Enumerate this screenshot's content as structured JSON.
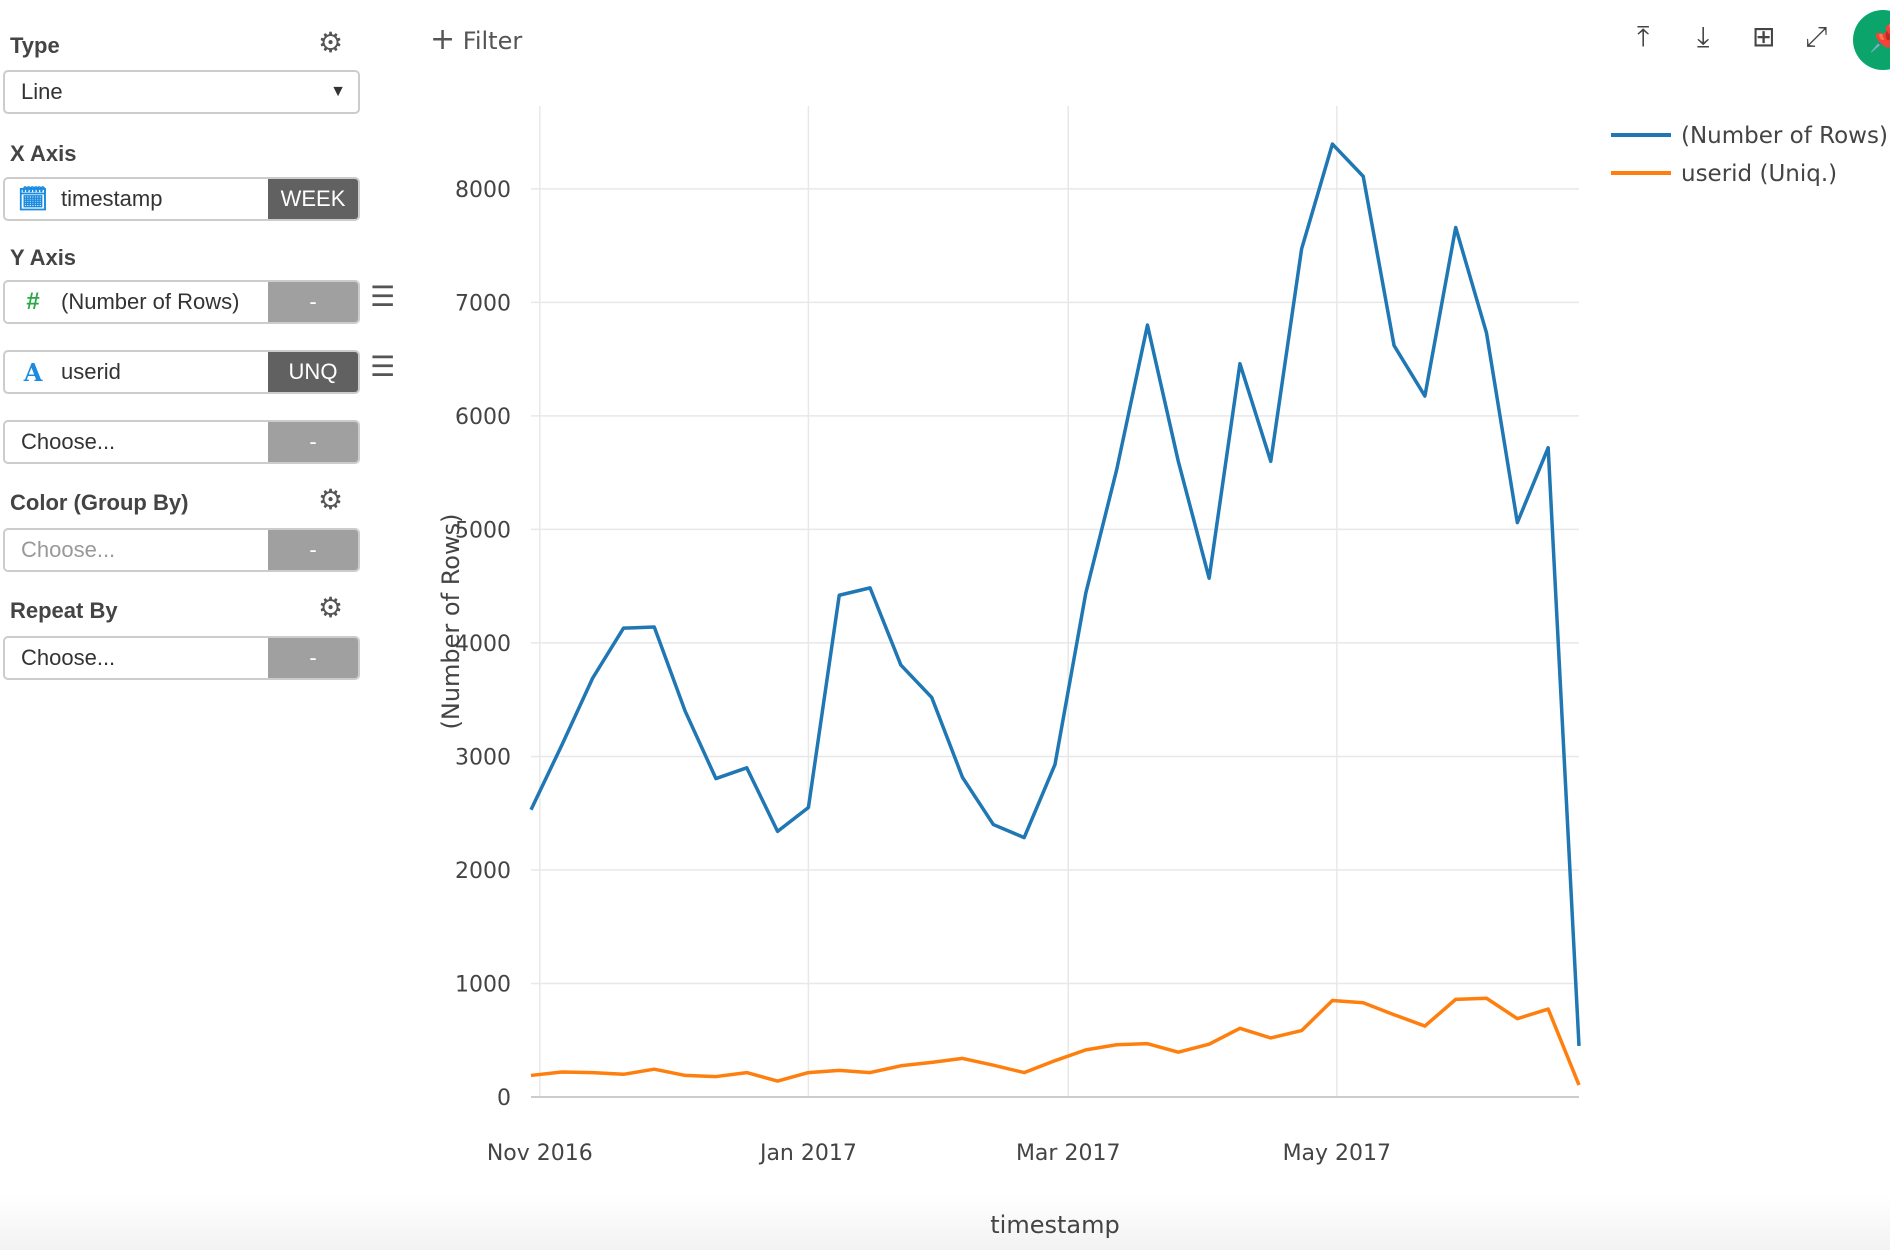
{
  "sidebar": {
    "type": {
      "label": "Type",
      "value": "Line"
    },
    "x_axis": {
      "label": "X Axis",
      "field": "timestamp",
      "agg": "WEEK",
      "icon": "calendar-icon"
    },
    "y_axis": {
      "label": "Y Axis",
      "items": [
        {
          "field": "(Number of Rows)",
          "agg": "-",
          "icon": "hash-icon"
        },
        {
          "field": "userid",
          "agg": "UNQ",
          "icon": "text-a-icon"
        },
        {
          "field": "Choose...",
          "agg": "-"
        }
      ]
    },
    "color": {
      "label": "Color (Group By)",
      "placeholder": "Choose...",
      "agg": "-"
    },
    "repeat": {
      "label": "Repeat By",
      "value": "Choose...",
      "agg": "-"
    }
  },
  "toolbar": {
    "filter_label": "Filter",
    "icons": [
      "upload-icon",
      "download-icon",
      "table-icon",
      "expand-icon",
      "pin-icon"
    ],
    "accent": "#0ba56c"
  },
  "chart_data": {
    "type": "line",
    "xlabel": "timestamp",
    "ylabel": "(Number of Rows)",
    "x": [
      "2016-10-30",
      "2016-11-06",
      "2016-11-13",
      "2016-11-20",
      "2016-11-27",
      "2016-12-04",
      "2016-12-11",
      "2016-12-18",
      "2016-12-25",
      "2017-01-01",
      "2017-01-08",
      "2017-01-15",
      "2017-01-22",
      "2017-01-29",
      "2017-02-05",
      "2017-02-12",
      "2017-02-19",
      "2017-02-26",
      "2017-03-05",
      "2017-03-12",
      "2017-03-19",
      "2017-03-26",
      "2017-04-02",
      "2017-04-09",
      "2017-04-16",
      "2017-04-23",
      "2017-04-30",
      "2017-05-07",
      "2017-05-14",
      "2017-05-21",
      "2017-05-28",
      "2017-06-04",
      "2017-06-11",
      "2017-06-18",
      "2017-06-25"
    ],
    "xticks": [
      "Nov 2016",
      "Jan 2017",
      "Mar 2017",
      "May 2017"
    ],
    "xtick_dates": [
      "2016-11-01",
      "2017-01-01",
      "2017-03-01",
      "2017-05-01"
    ],
    "yticks": [
      0,
      1000,
      2000,
      3000,
      4000,
      5000,
      6000,
      7000,
      8000
    ],
    "ylim": [
      0,
      8730
    ],
    "grid": true,
    "legend": "top-right",
    "series": [
      {
        "name": "(Number of Rows)",
        "color": "#1f77b4",
        "values": [
          2530,
          3100,
          3690,
          4130,
          4140,
          3400,
          2805,
          2900,
          2340,
          2550,
          4420,
          4485,
          3805,
          3520,
          2815,
          2400,
          2285,
          2930,
          4440,
          5525,
          6800,
          5600,
          4570,
          6460,
          5600,
          7470,
          8395,
          8110,
          6620,
          6175,
          7660,
          6730,
          5060,
          5720,
          450
        ]
      },
      {
        "name": "userid (Uniq.)",
        "color": "#ff7f0e",
        "values": [
          190,
          220,
          215,
          200,
          245,
          190,
          180,
          215,
          140,
          215,
          235,
          215,
          275,
          305,
          340,
          280,
          215,
          320,
          415,
          460,
          470,
          395,
          465,
          605,
          520,
          585,
          850,
          830,
          725,
          625,
          860,
          870,
          690,
          775,
          105
        ]
      }
    ]
  }
}
